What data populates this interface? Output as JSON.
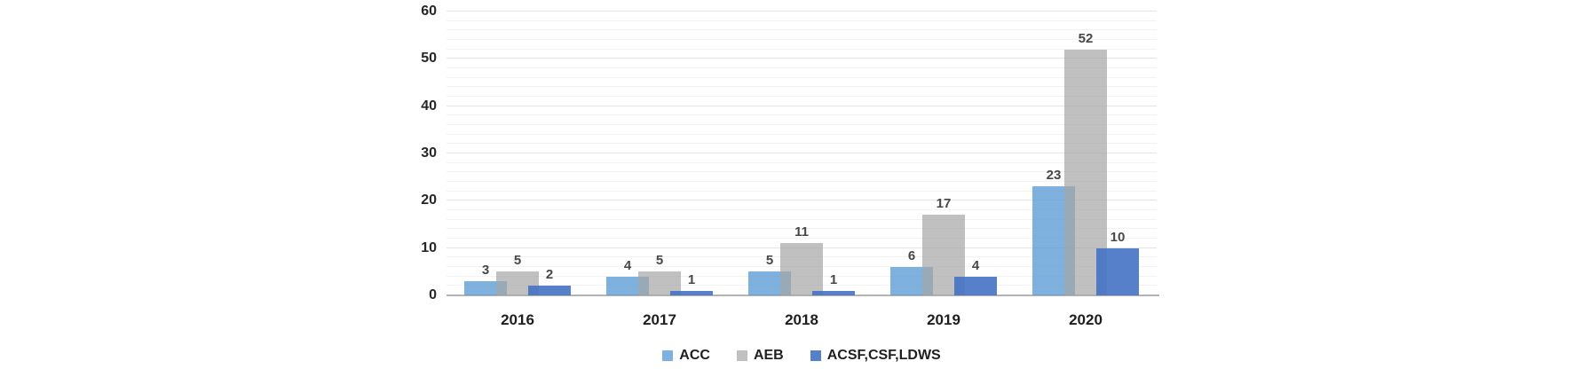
{
  "chart_data": {
    "type": "bar",
    "title": "",
    "xlabel": "",
    "ylabel": "",
    "categories": [
      "2016",
      "2017",
      "2018",
      "2019",
      "2020"
    ],
    "series": [
      {
        "name": "ACC",
        "color": "#5B9BD5",
        "alpha": 0.78,
        "values": [
          3,
          4,
          5,
          6,
          23
        ]
      },
      {
        "name": "AEB",
        "color": "#A5A5A5",
        "alpha": 0.7,
        "values": [
          5,
          5,
          11,
          17,
          52
        ]
      },
      {
        "name": "ACSF,CSF,LDWS",
        "color": "#4472C4",
        "alpha": 0.9,
        "values": [
          2,
          1,
          1,
          4,
          10
        ]
      }
    ],
    "ylim": [
      0,
      60
    ],
    "yticks": [
      0,
      10,
      20,
      30,
      40,
      50,
      60
    ],
    "minor_gridline_step": 2,
    "major_gridline_step": 10,
    "grid": true,
    "data_labels": true,
    "legend_position": "bottom",
    "axis_line_color": "#B4B4B4",
    "tick_label_color": "#262626",
    "data_label_color": "#474747"
  }
}
